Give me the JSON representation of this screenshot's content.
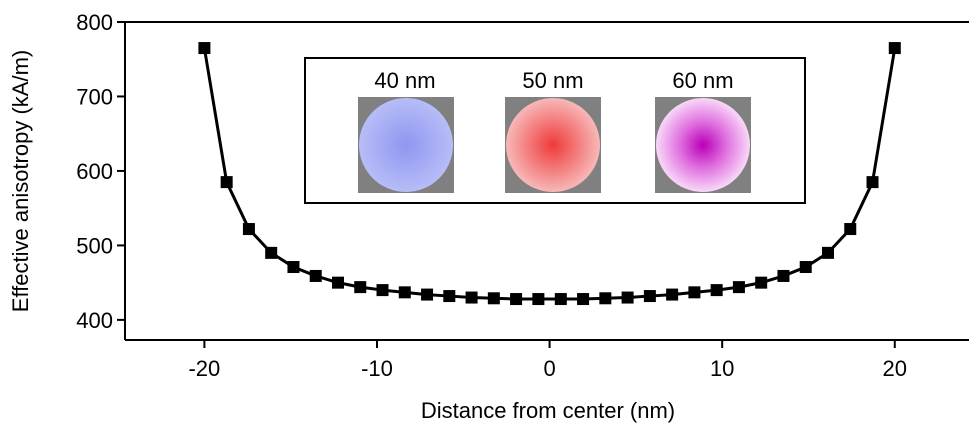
{
  "chart_data": {
    "type": "line",
    "xlabel": "Distance from center (nm)",
    "ylabel": "Effective anisotropy (kA/m)",
    "xlim": [
      -24.6,
      24.3
    ],
    "ylim": [
      373,
      800
    ],
    "xticks": [
      -20,
      -10,
      0,
      10,
      20
    ],
    "yticks": [
      400,
      500,
      600,
      700,
      800
    ],
    "x": [
      -20,
      -18.71,
      -17.42,
      -16.13,
      -14.84,
      -13.55,
      -12.26,
      -10.97,
      -9.68,
      -8.39,
      -7.1,
      -5.81,
      -4.52,
      -3.23,
      -1.94,
      -0.65,
      0.65,
      1.94,
      3.23,
      4.52,
      5.81,
      7.1,
      8.39,
      9.68,
      10.97,
      12.26,
      13.55,
      14.84,
      16.13,
      17.42,
      18.71,
      20
    ],
    "series": [
      {
        "color": "#000000",
        "values": [
          765,
          585,
          522,
          490,
          471,
          459,
          450,
          444,
          440,
          437,
          434,
          432,
          430,
          429,
          428,
          428,
          428,
          428,
          429,
          430,
          432,
          434,
          437,
          440,
          444,
          450,
          459,
          471,
          490,
          522,
          585,
          765
        ]
      }
    ],
    "annotations": [
      "40 nm",
      "50 nm",
      "60 nm"
    ]
  }
}
